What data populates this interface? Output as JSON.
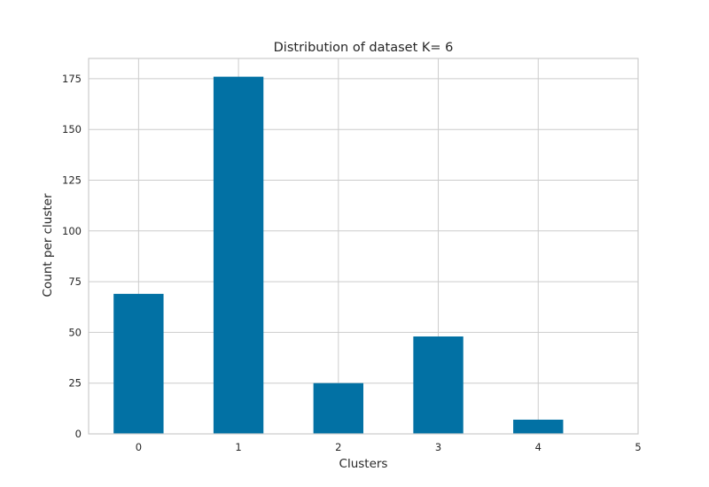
{
  "chart_data": {
    "type": "bar",
    "title": "Distribution of dataset K= 6",
    "xlabel": "Clusters",
    "ylabel": "Count per cluster",
    "categories": [
      "0",
      "1",
      "2",
      "3",
      "4",
      "5"
    ],
    "values": [
      69,
      176,
      25,
      48,
      7,
      0
    ],
    "xticks": [
      "0",
      "1",
      "2",
      "3",
      "4",
      "5"
    ],
    "yticks": [
      0,
      25,
      50,
      75,
      100,
      125,
      150,
      175
    ],
    "ylim": [
      0,
      185
    ],
    "xlim": [
      -0.5,
      5
    ],
    "grid": true,
    "bar_color": "#0271a4",
    "grid_color": "#cccccc",
    "frame_color": "#cccccc"
  }
}
